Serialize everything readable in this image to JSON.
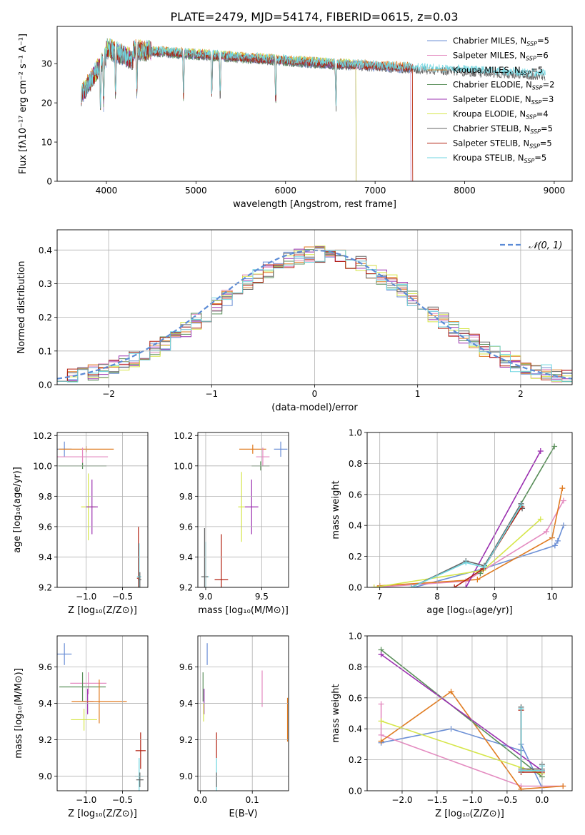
{
  "title": "PLATE=2479, MJD=54174, FIBERID=0615, z=0.03",
  "colors": {
    "cM": "#6b8fd6",
    "sM": "#e48bc0",
    "kM": "#e07b20",
    "cE": "#5a8f5a",
    "sE": "#9b30b0",
    "kE": "#d6e64a",
    "cS": "#666666",
    "sS": "#b22010",
    "kS": "#6fd6e0",
    "normal": "#5b8bd6"
  },
  "chart_data": [
    {
      "id": "spectrum",
      "type": "line",
      "xlabel": "wavelength [Angstrom, rest frame]",
      "ylabel": "Flux [fλ10⁻¹⁷ erg cm⁻² s⁻¹ A⁻¹]",
      "xlim": [
        3450,
        9200
      ],
      "ylim": [
        0,
        39.5
      ],
      "xticks": [
        "4000",
        "5000",
        "6000",
        "7000",
        "8000",
        "9000"
      ],
      "yticks": [
        "0",
        "10",
        "20",
        "30"
      ],
      "legend_placement": "top-right",
      "series": [
        {
          "name": "Chabrier MILES, N",
          "sub": "SSP",
          "suffix": "=5",
          "color": "cM",
          "x_end": 7400
        },
        {
          "name": "Salpeter MILES, N",
          "sub": "SSP",
          "suffix": "=6",
          "color": "sM",
          "x_end": 7400
        },
        {
          "name": "Kroupa MILES, N",
          "sub": "SSP",
          "suffix": "=5",
          "color": "kM",
          "x_end": 7420
        },
        {
          "name": "Chabrier ELODIE, N",
          "sub": "SSP",
          "suffix": "=2",
          "color": "cE",
          "x_end": 6790
        },
        {
          "name": "Salpeter ELODIE, N",
          "sub": "SSP",
          "suffix": "=3",
          "color": "sE",
          "x_end": 6790
        },
        {
          "name": "Kroupa ELODIE, N",
          "sub": "SSP",
          "suffix": "=4",
          "color": "kE",
          "x_end": 6790
        },
        {
          "name": "Chabrier STELIB, N",
          "sub": "SSP",
          "suffix": "=5",
          "color": "cS",
          "x_end": 8900
        },
        {
          "name": "Salpeter STELIB, N",
          "sub": "SSP",
          "suffix": "=5",
          "color": "sS",
          "x_end": 7420
        },
        {
          "name": "Kroupa STELIB, N",
          "sub": "SSP",
          "suffix": "=5",
          "color": "kS",
          "x_end": 8900
        }
      ]
    },
    {
      "id": "residuals",
      "type": "line",
      "xlabel": "(data-model)/error",
      "ylabel": "Normed distribution",
      "xlim": [
        -2.5,
        2.5
      ],
      "ylim": [
        0,
        0.46
      ],
      "xticks": [
        "-2",
        "-1",
        "0",
        "1",
        "2"
      ],
      "yticks": [
        "0.0",
        "0.1",
        "0.2",
        "0.3",
        "0.4"
      ],
      "grid": true,
      "legend": "𝒩(0, 1)",
      "legend_placement": "top-right",
      "bin_width": 0.1
    },
    {
      "id": "age_vs_Z",
      "type": "scatter",
      "xlabel": "Z [log₁₀(Z/Z⊙)]",
      "ylabel": "age  [log₁₀(age/yr)]",
      "xlim": [
        -1.4,
        -0.15
      ],
      "ylim": [
        9.2,
        10.22
      ],
      "xticks": [
        "-1.0",
        "-0.5"
      ],
      "yticks": [
        "9.2",
        "9.4",
        "9.6",
        "9.8",
        "10.0",
        "10.2"
      ],
      "grid": true,
      "points": [
        {
          "color": "cM",
          "x": -1.3,
          "y": 10.11,
          "xerr": 0.1,
          "yerr": 0.05
        },
        {
          "color": "kM",
          "x": -1.0,
          "y": 10.11,
          "xerr": 0.38,
          "yerr": 0.02
        },
        {
          "color": "sM",
          "x": -1.05,
          "y": 10.06,
          "xerr": 0.35,
          "yerr": 0.06
        },
        {
          "color": "cE",
          "x": -1.05,
          "y": 10.0,
          "xerr": 0.33,
          "yerr": 0.02
        },
        {
          "color": "kE",
          "x": -0.97,
          "y": 9.73,
          "xerr": 0.1,
          "yerr": 0.22
        },
        {
          "color": "sE",
          "x": -0.92,
          "y": 9.73,
          "xerr": 0.08,
          "yerr": 0.18
        },
        {
          "color": "sS",
          "x": -0.28,
          "y": 9.26,
          "xerr": 0.02,
          "yerr": 0.34
        },
        {
          "color": "kS",
          "x": -0.27,
          "y": 9.27,
          "xerr": 0.03,
          "yerr": 0.22
        },
        {
          "color": "cS",
          "x": -0.26,
          "y": 9.25,
          "xerr": 0.02,
          "yerr": 0.05
        }
      ]
    },
    {
      "id": "age_vs_mass",
      "type": "scatter",
      "xlabel": "mass [log₁₀(M/M⊙)]",
      "ylabel": "",
      "xlim": [
        8.93,
        9.74
      ],
      "ylim": [
        9.2,
        10.22
      ],
      "xticks": [
        "9.0",
        "9.5"
      ],
      "yticks": [
        "9.2",
        "9.4",
        "9.6",
        "9.8",
        "10.0",
        "10.2"
      ],
      "grid": true,
      "points": [
        {
          "color": "cM",
          "x": 9.67,
          "y": 10.11,
          "xerr": 0.06,
          "yerr": 0.05
        },
        {
          "color": "kM",
          "x": 9.42,
          "y": 10.11,
          "xerr": 0.12,
          "yerr": 0.03
        },
        {
          "color": "sM",
          "x": 9.51,
          "y": 10.06,
          "xerr": 0.06,
          "yerr": 0.06
        },
        {
          "color": "cE",
          "x": 9.49,
          "y": 10.0,
          "xerr": 0.08,
          "yerr": 0.03
        },
        {
          "color": "kE",
          "x": 9.32,
          "y": 9.73,
          "xerr": 0.03,
          "yerr": 0.23
        },
        {
          "color": "sE",
          "x": 9.41,
          "y": 9.73,
          "xerr": 0.06,
          "yerr": 0.18
        },
        {
          "color": "sS",
          "x": 9.14,
          "y": 9.25,
          "xerr": 0.06,
          "yerr": 0.3
        },
        {
          "color": "kS",
          "x": 9.0,
          "y": 9.27,
          "xerr": 0.03,
          "yerr": 0.23
        },
        {
          "color": "cS",
          "x": 8.99,
          "y": 9.27,
          "xerr": 0.03,
          "yerr": 0.32
        }
      ]
    },
    {
      "id": "mass_weight_vs_age",
      "type": "line",
      "xlabel": "age  [log₁₀(age/yr)]",
      "ylabel": "mass weight",
      "xlim": [
        6.78,
        10.35
      ],
      "ylim": [
        0,
        1.0
      ],
      "xticks": [
        "7",
        "8",
        "9",
        "10"
      ],
      "yticks": [
        "0.0",
        "0.2",
        "0.4",
        "0.6",
        "0.8",
        "1.0"
      ],
      "grid": true,
      "series": [
        {
          "color": "cM",
          "x": [
            7.6,
            8.8,
            10.05,
            10.1,
            10.2
          ],
          "y": [
            0.0,
            0.12,
            0.27,
            0.3,
            0.4
          ]
        },
        {
          "color": "sM",
          "x": [
            6.9,
            8.5,
            9.9,
            10.2
          ],
          "y": [
            0.0,
            0.04,
            0.36,
            0.56
          ]
        },
        {
          "color": "kM",
          "x": [
            7.0,
            8.7,
            10.0,
            10.18
          ],
          "y": [
            0.01,
            0.05,
            0.32,
            0.64
          ]
        },
        {
          "color": "cE",
          "x": [
            8.75,
            10.04
          ],
          "y": [
            0.09,
            0.91
          ]
        },
        {
          "color": "sE",
          "x": [
            8.5,
            9.8
          ],
          "y": [
            0.0,
            0.88
          ]
        },
        {
          "color": "kE",
          "x": [
            6.9,
            8.8,
            9.8
          ],
          "y": [
            0.0,
            0.11,
            0.44
          ]
        },
        {
          "color": "cS",
          "x": [
            7.55,
            8.5,
            8.82,
            9.46,
            9.48
          ],
          "y": [
            0.0,
            0.17,
            0.14,
            0.54,
            0.51
          ]
        },
        {
          "color": "sS",
          "x": [
            8.3,
            8.8,
            9.47
          ],
          "y": [
            0.0,
            0.12,
            0.52
          ]
        },
        {
          "color": "kS",
          "x": [
            7.55,
            8.5,
            8.82,
            9.46
          ],
          "y": [
            0.0,
            0.16,
            0.13,
            0.53
          ]
        }
      ]
    },
    {
      "id": "mass_vs_Z",
      "type": "scatter",
      "xlabel": "Z [log₁₀(Z/Z⊙)]",
      "ylabel": "mass [log₁₀(M/M⊙)]",
      "xlim": [
        -1.4,
        -0.15
      ],
      "ylim": [
        8.92,
        9.77
      ],
      "xticks": [
        "-1.0",
        "-0.5"
      ],
      "yticks": [
        "9.0",
        "9.2",
        "9.4",
        "9.6"
      ],
      "grid": true,
      "points": [
        {
          "color": "cM",
          "x": -1.3,
          "y": 9.67,
          "xerr": 0.1,
          "yerr": 0.06
        },
        {
          "color": "sM",
          "x": -0.97,
          "y": 9.51,
          "xerr": 0.25,
          "yerr": 0.06
        },
        {
          "color": "cE",
          "x": -1.05,
          "y": 9.49,
          "xerr": 0.32,
          "yerr": 0.08
        },
        {
          "color": "sE",
          "x": -0.98,
          "y": 9.41,
          "xerr": 0.08,
          "yerr": 0.07
        },
        {
          "color": "kM",
          "x": -0.82,
          "y": 9.41,
          "xerr": 0.38,
          "yerr": 0.12
        },
        {
          "color": "kE",
          "x": -1.03,
          "y": 9.31,
          "xerr": 0.18,
          "yerr": 0.06
        },
        {
          "color": "sS",
          "x": -0.25,
          "y": 9.14,
          "xerr": 0.07,
          "yerr": 0.1
        },
        {
          "color": "kS",
          "x": -0.27,
          "y": 9.0,
          "xerr": 0.06,
          "yerr": 0.1
        },
        {
          "color": "cS",
          "x": -0.26,
          "y": 8.98,
          "xerr": 0.05,
          "yerr": 0.04
        }
      ]
    },
    {
      "id": "mass_vs_ebv",
      "type": "scatter",
      "xlabel": "E(B-V)",
      "ylabel": "",
      "xlim": [
        -0.005,
        0.17
      ],
      "ylim": [
        8.92,
        9.77
      ],
      "xticks": [
        "0.0",
        "0.1"
      ],
      "yticks": [
        "9.0",
        "9.2",
        "9.4",
        "9.6"
      ],
      "grid": true,
      "points": [
        {
          "color": "cM",
          "x": 0.013,
          "y": 9.67,
          "yerr": 0.06
        },
        {
          "color": "sM",
          "x": 0.119,
          "y": 9.48,
          "yerr": 0.1
        },
        {
          "color": "kM",
          "x": 0.168,
          "y": 9.31,
          "yerr": 0.12
        },
        {
          "color": "cE",
          "x": 0.005,
          "y": 9.49,
          "yerr": 0.08
        },
        {
          "color": "sE",
          "x": 0.007,
          "y": 9.41,
          "yerr": 0.07
        },
        {
          "color": "kE",
          "x": 0.006,
          "y": 9.35,
          "yerr": 0.05
        },
        {
          "color": "sS",
          "x": 0.031,
          "y": 9.17,
          "yerr": 0.07
        },
        {
          "color": "kS",
          "x": 0.031,
          "y": 9.0,
          "yerr": 0.1
        },
        {
          "color": "cS",
          "x": 0.031,
          "y": 8.98,
          "yerr": 0.04
        }
      ]
    },
    {
      "id": "mass_weight_vs_Z",
      "type": "line",
      "xlabel": "Z [log₁₀(Z/Z⊙)]",
      "ylabel": "mass weight",
      "xlim": [
        -2.5,
        0.43
      ],
      "ylim": [
        0,
        1.0
      ],
      "xticks": [
        "-2.0",
        "-1.5",
        "-1.0",
        "-0.5",
        "0.0"
      ],
      "yticks": [
        "0.0",
        "0.2",
        "0.4",
        "0.6",
        "0.8",
        "1.0"
      ],
      "grid": true,
      "series": [
        {
          "color": "cM",
          "x": [
            -2.3,
            -1.3,
            -0.3,
            -0.3,
            0.0
          ],
          "y": [
            0.31,
            0.4,
            0.26,
            0.3,
            0.02
          ]
        },
        {
          "color": "sM",
          "x": [
            -2.3,
            -2.3,
            -0.3,
            0.3
          ],
          "y": [
            0.56,
            0.36,
            0.03,
            0.03
          ]
        },
        {
          "color": "kM",
          "x": [
            -2.3,
            -1.3,
            -0.3,
            0.3
          ],
          "y": [
            0.32,
            0.64,
            0.01,
            0.03
          ]
        },
        {
          "color": "cE",
          "x": [
            -2.3,
            0.0
          ],
          "y": [
            0.91,
            0.09
          ]
        },
        {
          "color": "sE",
          "x": [
            -2.3,
            0.0
          ],
          "y": [
            0.88,
            0.13
          ]
        },
        {
          "color": "kE",
          "x": [
            -2.3,
            -0.3,
            0.0
          ],
          "y": [
            0.45,
            0.15,
            0.11
          ]
        },
        {
          "color": "cS",
          "x": [
            -0.3,
            -0.3,
            0.0,
            0.0
          ],
          "y": [
            0.54,
            0.14,
            0.14,
            0.17
          ]
        },
        {
          "color": "sS",
          "x": [
            -0.3,
            -0.3,
            0.0
          ],
          "y": [
            0.52,
            0.12,
            0.12
          ]
        },
        {
          "color": "kS",
          "x": [
            -0.3,
            -0.3,
            0.0,
            0.0
          ],
          "y": [
            0.53,
            0.13,
            0.13,
            0.16
          ]
        }
      ]
    }
  ]
}
